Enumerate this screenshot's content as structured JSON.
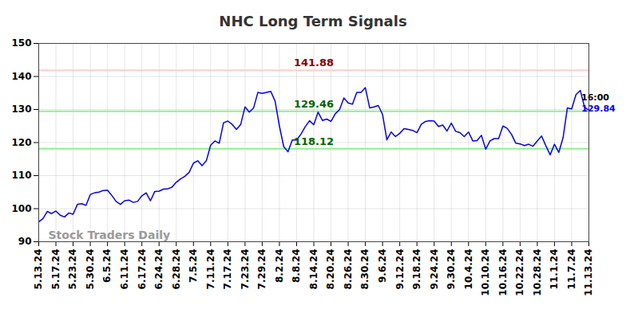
{
  "chart_data": {
    "type": "line",
    "title": "NHC Long Term Signals",
    "color": "#0000ee",
    "grid": true,
    "ylim": [
      90,
      150
    ],
    "yticks": [
      90,
      100,
      110,
      120,
      130,
      140,
      150
    ],
    "categories": [
      "5.13.24",
      null,
      null,
      null,
      "5.17.24",
      null,
      null,
      null,
      "5.23.24",
      null,
      null,
      null,
      "5.30.24",
      null,
      null,
      null,
      "6.5.24",
      null,
      null,
      null,
      "6.11.24",
      null,
      null,
      null,
      "6.17.24",
      null,
      null,
      null,
      "6.24.24",
      null,
      null,
      null,
      "6.28.24",
      null,
      null,
      null,
      "7.5.24",
      null,
      null,
      null,
      "7.11.24",
      null,
      null,
      null,
      "7.17.24",
      null,
      null,
      null,
      "7.23.24",
      null,
      null,
      null,
      "7.29.24",
      null,
      null,
      null,
      "8.2.24",
      null,
      null,
      null,
      "8.8.24",
      null,
      null,
      null,
      "8.14.24",
      null,
      null,
      null,
      "8.20.24",
      null,
      null,
      null,
      "8.26.24",
      null,
      null,
      null,
      "8.30.24",
      null,
      null,
      null,
      "9.6.24",
      null,
      null,
      null,
      "9.12.24",
      null,
      null,
      null,
      "9.18.24",
      null,
      null,
      null,
      "9.24.24",
      null,
      null,
      null,
      "9.30.24",
      null,
      null,
      null,
      "10.4.24",
      null,
      null,
      null,
      "10.10.24",
      null,
      null,
      null,
      "10.16.24",
      null,
      null,
      null,
      "10.22.24",
      null,
      null,
      null,
      "10.28.24",
      null,
      null,
      null,
      "11.1.24",
      null,
      null,
      null,
      "11.7.24",
      null,
      null,
      null,
      "11.13.24"
    ],
    "values": [
      96,
      97,
      99.2,
      98.5,
      99.3,
      98,
      97.5,
      98.7,
      98.3,
      101.3,
      101.5,
      101,
      104.3,
      104.8,
      105,
      105.5,
      105.6,
      104,
      102.2,
      101.3,
      102.4,
      102.6,
      101.9,
      102.2,
      103.9,
      104.8,
      102.4,
      105.2,
      105.3,
      105.9,
      106,
      106.5,
      108,
      109,
      109.8,
      111,
      113.8,
      114.5,
      113,
      114.5,
      119.2,
      120.5,
      119.8,
      126,
      126.5,
      125.5,
      124,
      125.5,
      130.8,
      129.2,
      130.5,
      135.2,
      134.9,
      135.2,
      135.5,
      132.5,
      125,
      118.8,
      117.2,
      120.8,
      120.8,
      122.5,
      124.8,
      126.6,
      125.4,
      129.2,
      126.7,
      127.1,
      126.4,
      128.7,
      130,
      133.5,
      132,
      131.6,
      135.2,
      135.2,
      136.6,
      130.5,
      130.8,
      131.2,
      128.5,
      120.8,
      123.2,
      121.8,
      122.8,
      124.2,
      124,
      123.7,
      123,
      125.5,
      126.4,
      126.6,
      126.5,
      124.9,
      125.3,
      123.5,
      125.9,
      123.4,
      123,
      121.8,
      123.2,
      120.5,
      120.6,
      122.2,
      118,
      120.5,
      121.2,
      121.2,
      125,
      124.3,
      122.5,
      119.8,
      119.6,
      119.1,
      119.5,
      118.9,
      120.5,
      122,
      119,
      116.3,
      119.5,
      117,
      121.5,
      130.5,
      130.2,
      134.5,
      135.8,
      130.7,
      129.84
    ],
    "signals": [
      {
        "value": 141.88,
        "color": "#8b0000",
        "line_color": "#ffcccc"
      },
      {
        "value": 129.46,
        "color": "#006400",
        "line_color": "#90ee90"
      },
      {
        "value": 118.12,
        "color": "#006400",
        "line_color": "#90ee90"
      }
    ],
    "time_label": "16:00",
    "watermark": "Stock Traders Daily"
  }
}
